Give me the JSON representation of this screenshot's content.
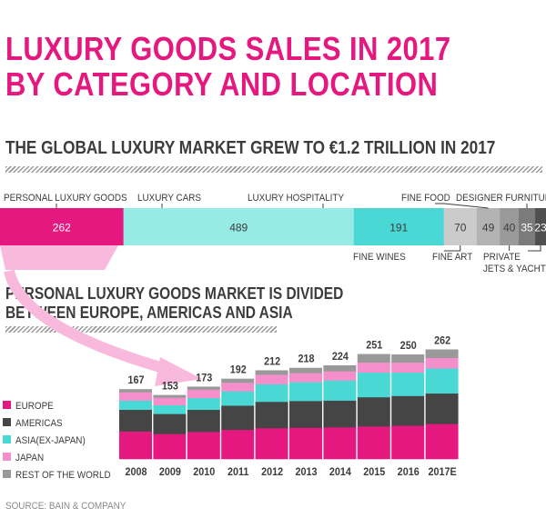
{
  "title_line1": "LUXURY GOODS SALES IN 2017",
  "title_line2": "BY CATEGORY AND LOCATION",
  "subtitle": "THE GLOBAL LUXURY MARKET GREW TO €1.2 TRILLION IN 2017",
  "section2_line1": "PERSONAL LUXURY GOODS MARKET IS DIVIDED",
  "section2_line2": "BETWEEN EUROPE, AMERICAS AND ASIA",
  "source": "SOURCE: BAIN & COMPANY",
  "colors": {
    "accent": "#e5187f",
    "text": "#3c3c3c"
  },
  "chart_data": [
    {
      "type": "bar",
      "orientation": "horizontal-stacked",
      "categories": [
        "PERSONAL LUXURY GOODS",
        "LUXURY CARS",
        "LUXURY HOSPITALITY",
        "FINE WINES",
        "FINE FOOD",
        "FINE ART",
        "DESIGNER FURNITURE",
        "PRIVATE JETS & YACHTS"
      ],
      "values": [
        262,
        489,
        191,
        70,
        49,
        40,
        35,
        23
      ],
      "colors": [
        "#e5187f",
        "#96ebe5",
        "#4ad8d5",
        "#cbcbcb",
        "#b3b3b3",
        "#9a9a9a",
        "#7b7b7b",
        "#4f4f4f"
      ]
    },
    {
      "type": "bar",
      "orientation": "vertical-stacked",
      "categories": [
        "2008",
        "2009",
        "2010",
        "2011",
        "2012",
        "2013",
        "2014",
        "2015",
        "2016",
        "2017E"
      ],
      "totals": [
        167,
        153,
        173,
        192,
        212,
        218,
        224,
        251,
        250,
        262
      ],
      "series": [
        {
          "name": "EUROPE",
          "color": "#e5187f",
          "values": [
            66,
            60,
            65,
            70,
            74,
            75,
            76,
            78,
            80,
            84
          ]
        },
        {
          "name": "AMERICAS",
          "color": "#454545",
          "values": [
            52,
            48,
            53,
            58,
            63,
            64,
            64,
            70,
            71,
            73
          ]
        },
        {
          "name": "ASIA(EX-JAPAN)",
          "color": "#4ad8d5",
          "values": [
            22,
            21,
            28,
            34,
            42,
            45,
            48,
            59,
            56,
            60
          ]
        },
        {
          "name": "JAPAN",
          "color": "#f48fcb",
          "values": [
            20,
            18,
            20,
            21,
            23,
            22,
            22,
            24,
            24,
            25
          ]
        },
        {
          "name": "REST OF THE WORLD",
          "color": "#999999",
          "values": [
            7,
            6,
            7,
            9,
            10,
            12,
            14,
            20,
            19,
            20
          ]
        }
      ],
      "legend_position": "left"
    }
  ]
}
